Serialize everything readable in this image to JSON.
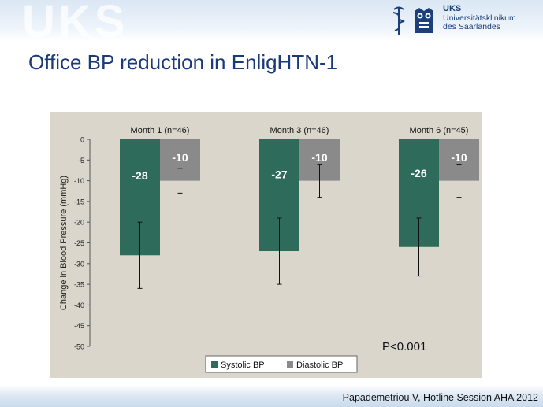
{
  "header": {
    "watermark_text": "UKS",
    "logo_name": "UKS",
    "logo_line1": "Universitätsklinikum",
    "logo_line2": "des Saarlandes",
    "logo_icon": "caduceus-and-owl-emblem"
  },
  "slide": {
    "title": "Office BP reduction in EnligHTN-1",
    "citation": "Papademetriou V, Hotline Session AHA 2012"
  },
  "colors": {
    "systolic": "#2f6b5b",
    "diastolic": "#8a8a8a",
    "panel": "#dbd6cc",
    "title": "#1b3a7a"
  },
  "chart_data": {
    "type": "bar",
    "title": "",
    "xlabel": "",
    "ylabel": "Change in Blood Pressure (mmHg)",
    "ylim": [
      -50,
      0
    ],
    "yticks": [
      0,
      -5,
      -10,
      -15,
      -20,
      -25,
      -30,
      -35,
      -40,
      -45,
      -50
    ],
    "grid": false,
    "categories": [
      "Month 1 (n=46)",
      "Month 3 (n=46)",
      "Month 6 (n=45)"
    ],
    "series": [
      {
        "name": "Systolic BP",
        "values": [
          -28,
          -27,
          -26
        ],
        "labels": [
          "-28",
          "-27",
          "-26"
        ],
        "error_low": [
          -36,
          -35,
          -33
        ],
        "error_high": [
          -20,
          -19,
          -19
        ]
      },
      {
        "name": "Diastolic BP",
        "values": [
          -10,
          -10,
          -10
        ],
        "labels": [
          "-10",
          "-10",
          "-10"
        ],
        "error_low": [
          -13,
          -14,
          -14
        ],
        "error_high": [
          -7,
          -6,
          -6
        ]
      }
    ],
    "annotation": "P<0.001",
    "legend_position": "bottom-center"
  }
}
